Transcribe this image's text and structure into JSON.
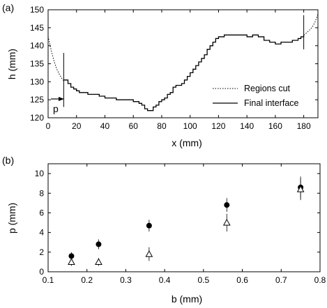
{
  "panel_a": {
    "label": "(a)",
    "xlabel": "x (mm)",
    "ylabel": "h (mm)",
    "p_label": "p",
    "legend": [
      {
        "label": "Regions cut",
        "style": "dotted"
      },
      {
        "label": "Final interface",
        "style": "solid"
      }
    ]
  },
  "panel_b": {
    "label": "(b)",
    "xlabel": "b  (mm)",
    "ylabel": "p  (mm)"
  },
  "chart_data": [
    {
      "type": "line",
      "xlim": [
        0,
        190
      ],
      "ylim": [
        120,
        150
      ],
      "xticks": [
        0,
        20,
        40,
        60,
        80,
        100,
        120,
        140,
        160,
        180
      ],
      "yticks": [
        120,
        125,
        130,
        135,
        140,
        145,
        150
      ],
      "xticklabels": [
        "0",
        "20",
        "40",
        "60",
        "80",
        "100",
        "120",
        "140",
        "160",
        "180"
      ],
      "yticklabels": [
        "120",
        "125",
        "130",
        "135",
        "140",
        "145",
        "150"
      ],
      "series": [
        {
          "name": "Regions cut",
          "style": "dotted",
          "x": [
            0,
            2,
            4,
            6,
            8,
            10,
            11
          ],
          "y": [
            142.6,
            139,
            136,
            133.6,
            132,
            130.7,
            130.3
          ]
        },
        {
          "name": "Regions cut",
          "style": "dotted",
          "x": [
            180,
            182,
            184,
            186,
            188,
            190
          ],
          "y": [
            143,
            143.6,
            144.3,
            145.2,
            146.6,
            148.8
          ]
        },
        {
          "name": "Final interface",
          "style": "solid-step",
          "x": [
            11,
            14,
            16,
            18,
            20,
            22,
            26,
            28,
            32,
            36,
            40,
            44,
            48,
            52,
            56,
            60,
            64,
            66,
            68,
            70,
            72,
            74,
            76,
            78,
            80,
            82,
            84,
            86,
            88,
            90,
            92,
            94,
            96,
            98,
            100,
            102,
            104,
            106,
            108,
            110,
            112,
            114,
            116,
            118,
            120,
            124,
            130,
            136,
            140,
            144,
            148,
            152,
            156,
            160,
            164,
            168,
            172,
            176,
            178,
            180
          ],
          "y": [
            130.5,
            129.5,
            128.5,
            128,
            127.5,
            127,
            127,
            126.5,
            126.5,
            126,
            125.5,
            125.5,
            125,
            125,
            125,
            124.5,
            124,
            123.5,
            122.5,
            122,
            122,
            123,
            123.5,
            124.5,
            125,
            125.5,
            126.5,
            127,
            128.5,
            129,
            129,
            129.5,
            130.5,
            131.5,
            132.5,
            133.5,
            134.5,
            135.5,
            136.5,
            137.5,
            139,
            140,
            141,
            142,
            142.5,
            143,
            143,
            143,
            142.5,
            143,
            142.5,
            141.5,
            141,
            140.5,
            141,
            141,
            141.5,
            142,
            142.5,
            143
          ]
        }
      ],
      "markers": [
        {
          "name": "vertical-marker",
          "x": 11,
          "y1": 123,
          "y2": 138
        },
        {
          "name": "vertical-marker",
          "x": 180,
          "y1": 139,
          "y2": 148.5
        }
      ],
      "annotations": [
        {
          "text": "p",
          "x": 11,
          "y": 124.7,
          "arrow": "right"
        }
      ],
      "legend_position": "bottom-right",
      "grid": false
    },
    {
      "type": "scatter",
      "xlim": [
        0.1,
        0.8
      ],
      "ylim": [
        0,
        11
      ],
      "xticks": [
        0.1,
        0.2,
        0.3,
        0.4,
        0.5,
        0.6,
        0.7,
        0.8
      ],
      "yticks": [
        0,
        2,
        4,
        6,
        8,
        10
      ],
      "xticklabels": [
        "0.1",
        "0.2",
        "0.3",
        "0.4",
        "0.5",
        "0.6",
        "0.7",
        "0.8"
      ],
      "yticklabels": [
        "0",
        "2",
        "4",
        "6",
        "8",
        "10"
      ],
      "series": [
        {
          "marker": "filled-circle",
          "x": [
            0.16,
            0.23,
            0.36,
            0.56,
            0.75
          ],
          "y": [
            1.6,
            2.8,
            4.7,
            6.8,
            8.6
          ],
          "err": [
            0.4,
            0.5,
            0.6,
            0.7,
            1.1
          ]
        },
        {
          "marker": "open-triangle",
          "x": [
            0.16,
            0.23,
            0.36,
            0.56,
            0.75
          ],
          "y": [
            1.0,
            1.0,
            1.8,
            5.0,
            8.4
          ],
          "err": [
            0.4,
            0.4,
            0.7,
            0.9,
            1.1
          ]
        }
      ],
      "grid": false
    }
  ]
}
